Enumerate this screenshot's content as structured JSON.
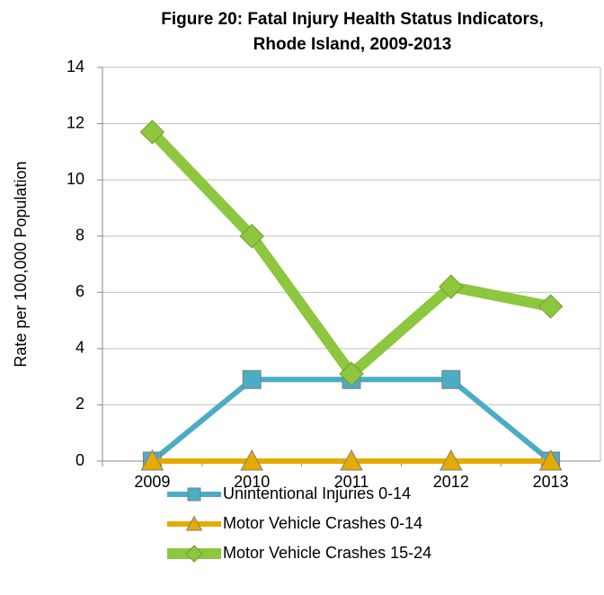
{
  "chart_data": {
    "type": "line",
    "title": [
      "Figure 20: Fatal Injury Health Status Indicators,",
      "Rhode Island, 2009-2013"
    ],
    "y_label": "Rate per 100,000 Population",
    "categories": [
      "2009",
      "2010",
      "2011",
      "2012",
      "2013"
    ],
    "series": [
      {
        "name": "Unintentional Injuries 0-14",
        "color": "#4bacc6",
        "marker": "square",
        "values": [
          0,
          2.9,
          2.9,
          2.9,
          0
        ]
      },
      {
        "name": "Motor Vehicle Crashes 0-14",
        "color": "#e5ab00",
        "marker": "triangle",
        "values": [
          0,
          0,
          0,
          0,
          0
        ]
      },
      {
        "name": "Motor Vehicle Crashes 15-24",
        "color": "#8dc63f",
        "marker": "diamond",
        "values": [
          11.7,
          8.0,
          3.1,
          6.2,
          5.5
        ]
      }
    ],
    "ylim": [
      0,
      14
    ],
    "yticks": [
      0,
      2,
      4,
      6,
      8,
      10,
      12,
      14
    ],
    "grid": true,
    "legend": "bottom"
  }
}
